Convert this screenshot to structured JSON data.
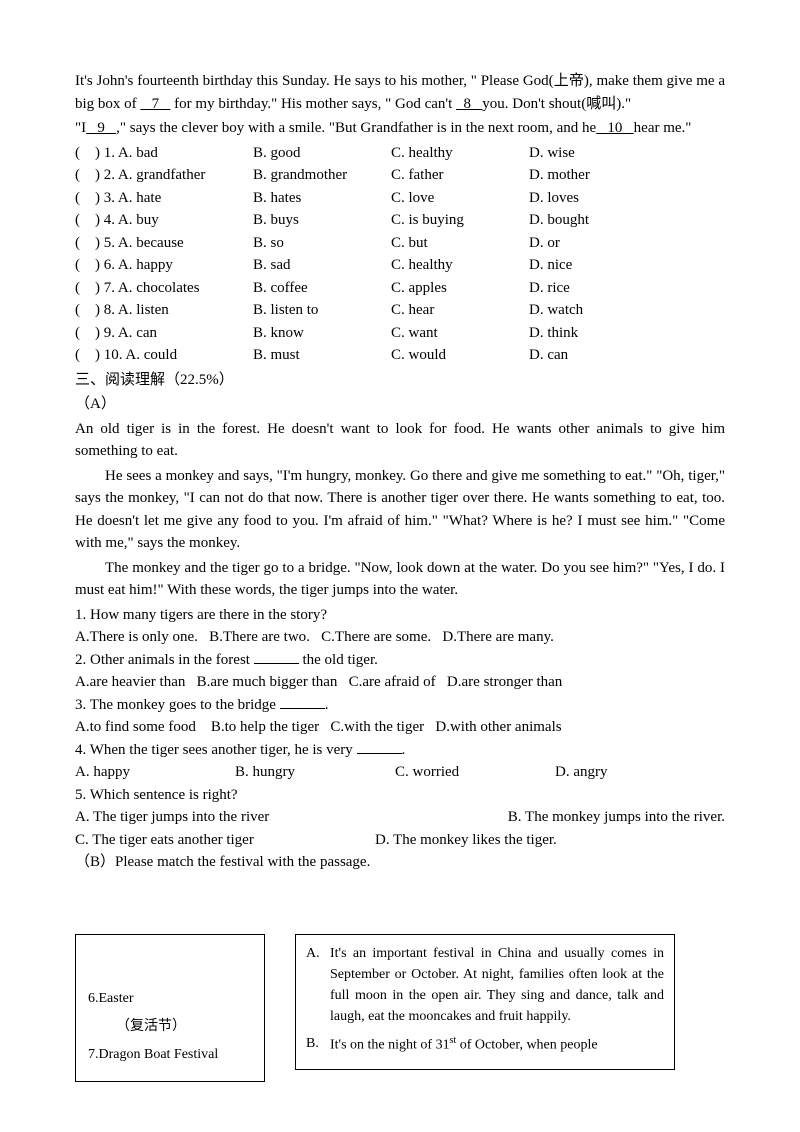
{
  "cloze": {
    "p1": "It's John's fourteenth birthday this Sunday. He says to his mother, \" Please God(上帝), make them give me a big box of ",
    "b7a": "   7   ",
    "p1b": " for my birthday.\" His mother says, \" God can't ",
    "b8a": "  8   ",
    "p1c": "you. Don't shout(喊叫).\"",
    "p2a": "\"I",
    "b9a": "   9   ",
    "p2b": ",\" says the clever boy with a smile. \"But Grandfather is in the next room, and he",
    "b10a": "   10   ",
    "p2c": "hear me.\"",
    "rows": [
      {
        "num": "(    ) 1. A. bad",
        "b": "B. good",
        "c": "C. healthy",
        "d": "D. wise"
      },
      {
        "num": "(    ) 2. A. grandfather",
        "b": "B. grandmother",
        "c": "C. father",
        "d": "D. mother"
      },
      {
        "num": "(    ) 3. A. hate",
        "b": "B. hates",
        "c": "C. love",
        "d": "D. loves"
      },
      {
        "num": "(    ) 4. A. buy",
        "b": "B. buys",
        "c": "C. is buying",
        "d": "D. bought"
      },
      {
        "num": "(    ) 5. A. because",
        "b": "B. so",
        "c": "C. but",
        "d": "D. or"
      },
      {
        "num": "(    ) 6. A. happy",
        "b": "B. sad",
        "c": "C. healthy",
        "d": "D. nice"
      },
      {
        "num": "(    ) 7. A. chocolates",
        "b": "B. coffee",
        "c": "C. apples",
        "d": "D. rice"
      },
      {
        "num": "(    ) 8. A. listen",
        "b": "B. listen to",
        "c": "C. hear",
        "d": "D. watch"
      },
      {
        "num": "(    ) 9. A. can",
        "b": "B. know",
        "c": "C. want",
        "d": "D. think"
      },
      {
        "num": "(    ) 10. A. could",
        "b": "B. must",
        "c": "C. would",
        "d": "D. can"
      }
    ]
  },
  "section3": "三、阅读理解（22.5%）",
  "partA": "（A）",
  "readingA": {
    "p1": "An old tiger is in the forest. He doesn't want to look for food. He wants other animals to give him something to eat.",
    "p2": "He sees a monkey and says, \"I'm hungry, monkey. Go there and give me something to eat.\" \"Oh, tiger,\" says the monkey, \"I can not do that now. There is another tiger over there. He wants something to eat, too. He doesn't let me give any food to you. I'm afraid of him.\" \"What? Where is he? I must see him.\" \"Come with me,\" says the monkey.",
    "p3": "The monkey and the tiger go to a bridge. \"Now, look down at the water. Do you see him?\" \"Yes, I do. I must eat him!\" With these words, the tiger jumps into the water.",
    "q1": "1. How many tigers are there in the story?",
    "q1o": "A.There is only one.   B.There are two.   C.There are some.   D.There are many.",
    "q2a": "2. Other animals in the forest ",
    "q2b": " the old tiger.",
    "q2o": "A.are heavier than   B.are much bigger than   C.are afraid of   D.are stronger than",
    "q3a": "3. The monkey goes to the bridge ",
    "q3b": ".",
    "q3o": "A.to find some food    B.to help the tiger   C.with the tiger   D.with other animals",
    "q4a": "4. When the tiger sees another tiger, he is very ",
    "q4b": ".",
    "q4o": {
      "a": "A. happy",
      "b": "B. hungry",
      "c": "C. worried",
      "d": "D. angry"
    },
    "q5": "5. Which sentence is right?",
    "q5a": "A. The tiger jumps into the river",
    "q5b": "B. The monkey jumps into the river.",
    "q5c": "C. The tiger eats another tiger",
    "q5d": "D. The monkey likes the tiger."
  },
  "partB": "（B）Please match the festival with the passage.",
  "leftBox": {
    "i6": "6.Easter",
    "i6cn": "（复活节）",
    "i7": "7.Dragon Boat Festival"
  },
  "rightBox": {
    "A": "It's an important festival in China and usually comes in September or October. At night, families often look at the full moon in the open air. They sing and dance, talk and laugh, eat the mooncakes and fruit happily.",
    "Ba": "It's on the night of 31",
    "Bst": "st",
    "Bb": " of October, when people"
  }
}
